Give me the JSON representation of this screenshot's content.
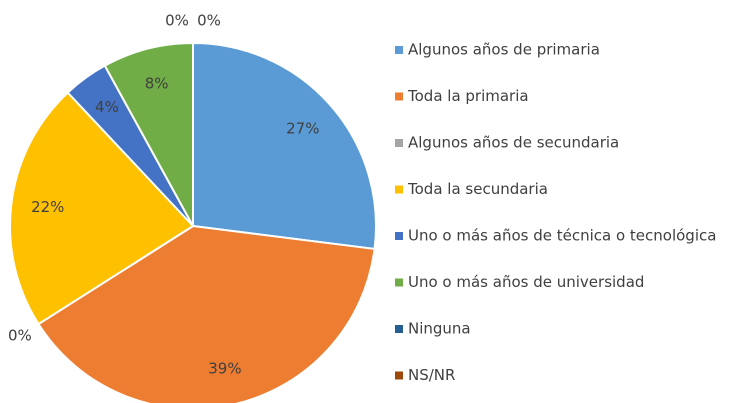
{
  "chart_data": {
    "type": "pie",
    "categories": [
      "Algunos años de primaria",
      "Toda la primaria",
      "Algunos años de secundaria",
      "Toda la secundaria",
      "Uno o más años de técnica o tecnológica",
      "Uno o más años de universidad",
      "Ninguna",
      "NS/NR"
    ],
    "values": [
      27,
      39,
      0,
      22,
      4,
      8,
      0,
      0
    ],
    "value_labels": [
      "27%",
      "39%",
      "0%",
      "22%",
      "4%",
      "8%",
      "0%",
      "0%"
    ],
    "colors": [
      "#5b9bd5",
      "#ed7d31",
      "#a5a5a5",
      "#ffc000",
      "#4472c4",
      "#70ad47",
      "#255e91",
      "#9e480e"
    ],
    "legend": "right"
  }
}
